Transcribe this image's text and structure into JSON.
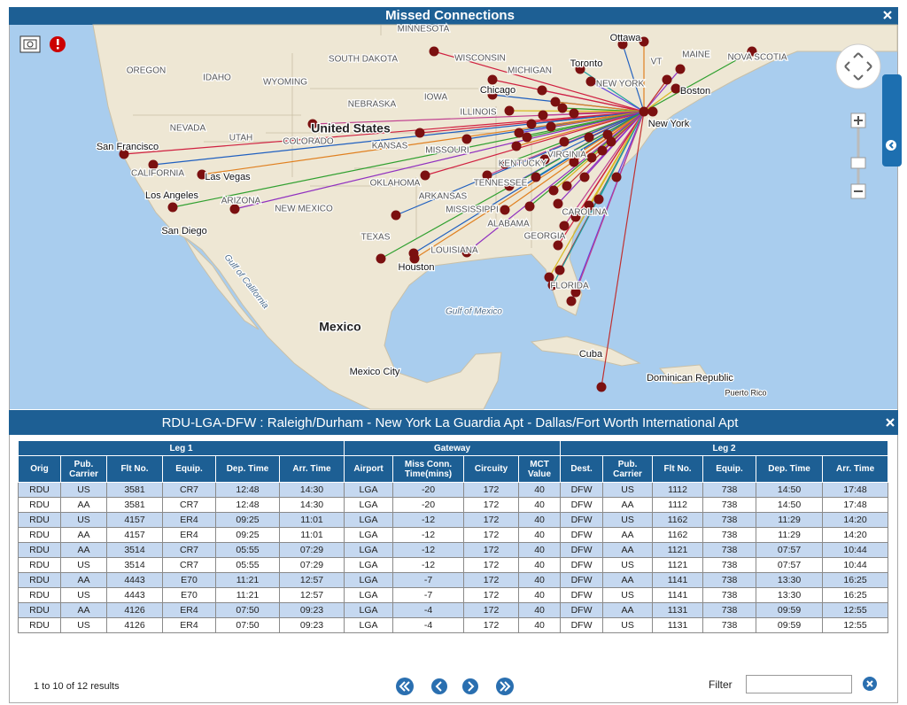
{
  "window": {
    "title": "Missed Connections"
  },
  "map": {
    "labels": [
      "MINNESOTA",
      "WISCONSIN",
      "SOUTH DAKOTA",
      "OREGON",
      "IDAHO",
      "WYOMING",
      "NEBRASKA",
      "IOWA",
      "ILLINOIS",
      "MICHIGAN",
      "Ottawa",
      "Toronto",
      "MAINE",
      "NOVA SCOTIA",
      "VT",
      "NEW YORK",
      "Boston",
      "New York",
      "Chicago",
      "NEVADA",
      "UTAH",
      "COLORADO",
      "United States",
      "KANSAS",
      "MISSOURI",
      "San Francisco",
      "CALIFORNIA",
      "Las Vegas",
      "KENTUCKY",
      "VIRGINIA",
      "OKLAHOMA",
      "TENNESSEE",
      "ARKANSAS",
      "Los Angeles",
      "ARIZONA",
      "NEW MEXICO",
      "MISSISSIPPI",
      "CAROLINA",
      "ALABAMA",
      "GEORGIA",
      "San Diego",
      "TEXAS",
      "LOUISIANA",
      "Houston",
      "FLORIDA",
      "Gulf of California",
      "Gulf of Mexico",
      "Mexico",
      "Cuba",
      "Mexico City",
      "Dominican Republic",
      "Puerto Rico"
    ]
  },
  "panel": {
    "title": "RDU-LGA-DFW : Raleigh/Durham - New York La Guardia Apt - Dallas/Fort Worth International Apt"
  },
  "table": {
    "groups": [
      "Leg 1",
      "Gateway",
      "Leg 2"
    ],
    "columns": [
      "Orig",
      "Pub. Carrier",
      "Flt No.",
      "Equip.",
      "Dep. Time",
      "Arr. Time",
      "Airport",
      "Miss Conn. Time(mins)",
      "Circuity",
      "MCT Value",
      "Dest.",
      "Pub. Carrier",
      "Flt No.",
      "Equip.",
      "Dep. Time",
      "Arr. Time"
    ],
    "rows": [
      [
        "RDU",
        "US",
        "3581",
        "CR7",
        "12:48",
        "14:30",
        "LGA",
        "-20",
        "172",
        "40",
        "DFW",
        "US",
        "1112",
        "738",
        "14:50",
        "17:48"
      ],
      [
        "RDU",
        "AA",
        "3581",
        "CR7",
        "12:48",
        "14:30",
        "LGA",
        "-20",
        "172",
        "40",
        "DFW",
        "AA",
        "1112",
        "738",
        "14:50",
        "17:48"
      ],
      [
        "RDU",
        "US",
        "4157",
        "ER4",
        "09:25",
        "11:01",
        "LGA",
        "-12",
        "172",
        "40",
        "DFW",
        "US",
        "1162",
        "738",
        "11:29",
        "14:20"
      ],
      [
        "RDU",
        "AA",
        "4157",
        "ER4",
        "09:25",
        "11:01",
        "LGA",
        "-12",
        "172",
        "40",
        "DFW",
        "AA",
        "1162",
        "738",
        "11:29",
        "14:20"
      ],
      [
        "RDU",
        "AA",
        "3514",
        "CR7",
        "05:55",
        "07:29",
        "LGA",
        "-12",
        "172",
        "40",
        "DFW",
        "AA",
        "1121",
        "738",
        "07:57",
        "10:44"
      ],
      [
        "RDU",
        "US",
        "3514",
        "CR7",
        "05:55",
        "07:29",
        "LGA",
        "-12",
        "172",
        "40",
        "DFW",
        "US",
        "1121",
        "738",
        "07:57",
        "10:44"
      ],
      [
        "RDU",
        "AA",
        "4443",
        "E70",
        "11:21",
        "12:57",
        "LGA",
        "-7",
        "172",
        "40",
        "DFW",
        "AA",
        "1141",
        "738",
        "13:30",
        "16:25"
      ],
      [
        "RDU",
        "US",
        "4443",
        "E70",
        "11:21",
        "12:57",
        "LGA",
        "-7",
        "172",
        "40",
        "DFW",
        "US",
        "1141",
        "738",
        "13:30",
        "16:25"
      ],
      [
        "RDU",
        "AA",
        "4126",
        "ER4",
        "07:50",
        "09:23",
        "LGA",
        "-4",
        "172",
        "40",
        "DFW",
        "AA",
        "1131",
        "738",
        "09:59",
        "12:55"
      ],
      [
        "RDU",
        "US",
        "4126",
        "ER4",
        "07:50",
        "09:23",
        "LGA",
        "-4",
        "172",
        "40",
        "DFW",
        "US",
        "1131",
        "738",
        "09:59",
        "12:55"
      ]
    ]
  },
  "footer": {
    "results": "1 to 10 of 12 results",
    "filter_label": "Filter"
  }
}
